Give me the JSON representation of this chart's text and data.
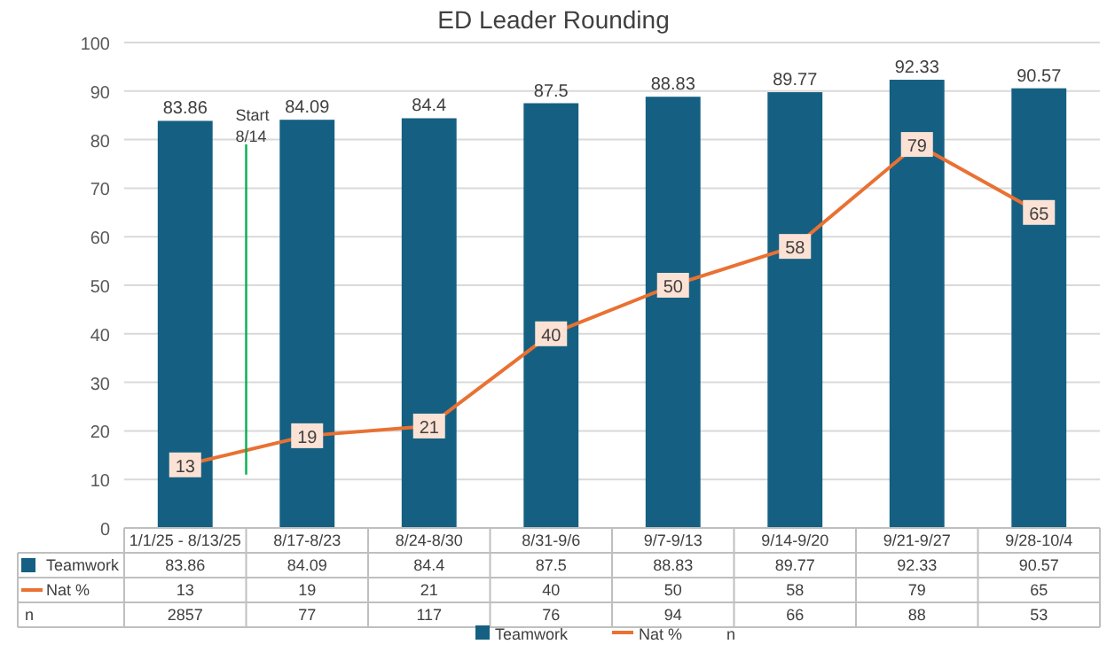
{
  "chart_data": {
    "type": "bar",
    "title": "ED Leader Rounding",
    "categories": [
      "1/1/25 - 8/13/25",
      "8/17-8/23",
      "8/24-8/30",
      "8/31-9/6",
      "9/7-9/13",
      "9/14-9/20",
      "9/21-9/27",
      "9/28-10/4"
    ],
    "series": [
      {
        "name": "Teamwork",
        "color": "#156082",
        "values": [
          83.86,
          84.09,
          84.4,
          87.5,
          88.83,
          89.77,
          92.33,
          90.57
        ],
        "value_labels": [
          "83.86",
          "84.09",
          "84.4",
          "87.5",
          "88.83",
          "89.77",
          "92.33",
          "90.57"
        ]
      },
      {
        "name": "Nat %",
        "type": "line",
        "marker": "square",
        "color": "#e97132",
        "values": [
          13,
          19,
          21,
          40,
          50,
          58,
          79,
          65
        ],
        "value_labels": [
          "13",
          "19",
          "21",
          "40",
          "50",
          "58",
          "79",
          "65"
        ]
      },
      {
        "name": "n",
        "type": "other",
        "values": [
          null,
          null,
          null,
          null,
          null,
          null,
          null,
          null
        ],
        "value_labels": [
          "2857",
          "77",
          "117",
          "76",
          "94",
          "66",
          "88",
          "53"
        ]
      }
    ],
    "ylim": [
      0,
      100
    ],
    "yticks": [
      0,
      10,
      20,
      30,
      40,
      50,
      60,
      70,
      80,
      90,
      100
    ],
    "grid": "y",
    "legend": "bottom",
    "line_style": "solid",
    "annotations": [
      "Start 8/14"
    ]
  }
}
